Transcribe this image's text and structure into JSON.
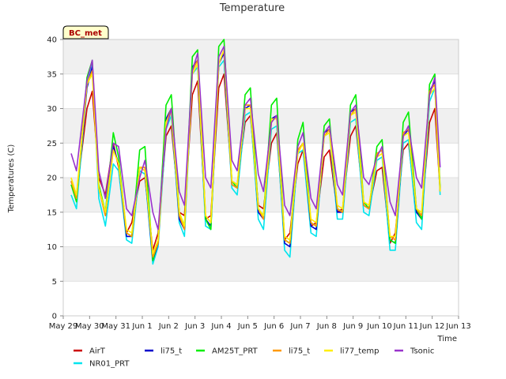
{
  "chart_data": {
    "type": "line",
    "title": "Temperature",
    "xlabel": "Time",
    "ylabel": "Temperatures (C)",
    "badge": "BC_met",
    "ylim": [
      0,
      40
    ],
    "yticks": [
      0,
      5,
      10,
      15,
      20,
      25,
      30,
      35,
      40
    ],
    "xlim": [
      0,
      15
    ],
    "xticks": [
      {
        "value": 0,
        "label": "May 29"
      },
      {
        "value": 1,
        "label": "May 30"
      },
      {
        "value": 2,
        "label": "May 31"
      },
      {
        "value": 3,
        "label": "Jun 1"
      },
      {
        "value": 4,
        "label": "Jun 2"
      },
      {
        "value": 5,
        "label": "Jun 3"
      },
      {
        "value": 6,
        "label": "Jun 4"
      },
      {
        "value": 7,
        "label": "Jun 5"
      },
      {
        "value": 8,
        "label": "Jun 6"
      },
      {
        "value": 9,
        "label": "Jun 7"
      },
      {
        "value": 10,
        "label": "Jun 8"
      },
      {
        "value": 11,
        "label": "Jun 9"
      },
      {
        "value": 12,
        "label": "Jun 10"
      },
      {
        "value": 13,
        "label": "Jun 11"
      },
      {
        "value": 14,
        "label": "Jun 12"
      },
      {
        "value": 15,
        "label": "Jun 13"
      }
    ],
    "grid": "horizontal bands",
    "legend_position": "bottom",
    "x": [
      0.3,
      0.5,
      0.9,
      1.1,
      1.35,
      1.6,
      1.9,
      2.1,
      2.4,
      2.6,
      2.9,
      3.1,
      3.4,
      3.6,
      3.9,
      4.1,
      4.4,
      4.6,
      4.9,
      5.1,
      5.4,
      5.6,
      5.9,
      6.1,
      6.4,
      6.6,
      6.9,
      7.1,
      7.4,
      7.6,
      7.9,
      8.1,
      8.4,
      8.6,
      8.9,
      9.1,
      9.4,
      9.6,
      9.9,
      10.1,
      10.4,
      10.6,
      10.9,
      11.1,
      11.4,
      11.6,
      11.9,
      12.1,
      12.4,
      12.6,
      12.9,
      13.1,
      13.4,
      13.6,
      13.9,
      14.1,
      14.3
    ],
    "series": [
      {
        "name": "AirT",
        "color": "#cc0000",
        "values": [
          19.5,
          17.5,
          30.0,
          32.5,
          20.0,
          17.5,
          25.0,
          21.5,
          12.0,
          13.5,
          19.5,
          20.0,
          9.5,
          12.0,
          26.0,
          27.5,
          15.0,
          14.5,
          32.0,
          34.0,
          14.0,
          14.5,
          33.0,
          35.0,
          19.5,
          19.0,
          28.0,
          29.0,
          16.0,
          15.5,
          25.0,
          26.5,
          11.0,
          12.0,
          22.0,
          24.0,
          13.0,
          13.5,
          23.0,
          24.0,
          15.0,
          15.5,
          26.0,
          27.5,
          16.0,
          15.5,
          21.0,
          21.5,
          10.5,
          12.0,
          24.0,
          25.0,
          15.0,
          14.5,
          28.0,
          30.0,
          18.0
        ]
      },
      {
        "name": "NR01_PRT",
        "color": "#00e5ee",
        "values": [
          17.5,
          15.5,
          33.0,
          36.5,
          17.0,
          13.0,
          22.0,
          21.0,
          11.0,
          10.5,
          21.0,
          20.5,
          7.5,
          10.0,
          27.0,
          29.0,
          13.5,
          11.5,
          35.0,
          36.0,
          13.0,
          12.5,
          36.0,
          37.0,
          18.5,
          17.5,
          29.0,
          29.5,
          14.0,
          12.5,
          27.0,
          27.5,
          9.5,
          8.5,
          23.5,
          24.0,
          12.0,
          11.5,
          26.0,
          26.5,
          14.0,
          14.0,
          28.0,
          28.5,
          15.0,
          14.5,
          22.5,
          23.0,
          9.5,
          9.5,
          25.0,
          25.5,
          13.5,
          12.5,
          31.0,
          33.0,
          17.5
        ]
      },
      {
        "name": "li75_t",
        "color": "#0000cc",
        "values": [
          19.5,
          17.0,
          33.0,
          36.0,
          18.5,
          14.5,
          24.5,
          22.0,
          11.5,
          11.5,
          21.5,
          21.0,
          8.0,
          10.5,
          28.5,
          30.0,
          14.0,
          12.5,
          36.0,
          37.0,
          14.0,
          13.0,
          36.5,
          38.0,
          19.0,
          18.5,
          30.0,
          30.5,
          15.0,
          14.0,
          28.5,
          29.0,
          10.5,
          10.0,
          24.0,
          25.0,
          13.0,
          12.5,
          26.5,
          27.0,
          15.0,
          15.0,
          29.5,
          30.0,
          16.0,
          15.5,
          23.5,
          24.0,
          11.0,
          10.5,
          26.0,
          27.0,
          15.0,
          14.0,
          32.5,
          34.0,
          18.0
        ]
      },
      {
        "name": "AM25T_PRT",
        "color": "#00ee00",
        "values": [
          19.0,
          16.5,
          34.5,
          37.0,
          19.0,
          15.0,
          26.5,
          23.0,
          12.0,
          11.5,
          24.0,
          24.5,
          8.0,
          11.0,
          30.5,
          32.0,
          15.0,
          13.0,
          37.5,
          38.5,
          14.0,
          12.5,
          39.0,
          40.0,
          19.5,
          18.5,
          32.0,
          33.0,
          15.5,
          14.5,
          30.5,
          31.5,
          11.0,
          10.5,
          25.5,
          28.0,
          13.5,
          13.0,
          27.5,
          28.5,
          15.5,
          15.0,
          30.5,
          32.0,
          16.5,
          15.5,
          24.5,
          25.5,
          11.0,
          10.5,
          28.0,
          29.5,
          15.5,
          14.0,
          33.5,
          35.0,
          18.5
        ]
      },
      {
        "name": "li75_t",
        "color": "#ff9900",
        "values": [
          19.5,
          17.0,
          33.5,
          35.5,
          18.5,
          14.5,
          24.0,
          22.0,
          12.0,
          11.5,
          21.5,
          21.5,
          8.5,
          10.5,
          28.0,
          30.0,
          14.5,
          12.5,
          35.5,
          37.0,
          14.5,
          13.5,
          36.5,
          38.5,
          19.0,
          18.5,
          30.5,
          30.5,
          15.5,
          14.0,
          28.0,
          29.0,
          11.0,
          10.5,
          24.0,
          25.0,
          13.5,
          13.0,
          26.0,
          27.0,
          15.5,
          15.0,
          29.0,
          30.0,
          16.0,
          15.5,
          23.5,
          24.0,
          11.5,
          11.0,
          26.5,
          27.0,
          15.5,
          14.5,
          32.5,
          33.5,
          18.0
        ]
      },
      {
        "name": "li77_temp",
        "color": "#ffee00",
        "values": [
          20.0,
          17.5,
          33.5,
          35.0,
          18.5,
          15.0,
          24.0,
          22.0,
          12.5,
          12.0,
          21.5,
          21.0,
          9.0,
          11.0,
          28.0,
          29.5,
          15.0,
          13.0,
          35.0,
          36.5,
          14.5,
          13.5,
          36.5,
          38.5,
          19.5,
          19.0,
          30.0,
          30.0,
          15.5,
          14.5,
          28.5,
          28.5,
          11.5,
          11.0,
          23.5,
          25.0,
          14.0,
          13.5,
          26.0,
          26.5,
          16.0,
          15.5,
          29.0,
          29.5,
          16.5,
          16.0,
          23.0,
          23.5,
          11.5,
          11.5,
          26.0,
          26.5,
          15.5,
          15.0,
          32.0,
          33.0,
          18.0
        ]
      },
      {
        "name": "Tsonic",
        "color": "#9933cc",
        "values": [
          23.5,
          21.0,
          34.0,
          37.0,
          21.0,
          17.0,
          25.0,
          24.5,
          15.5,
          14.5,
          20.0,
          22.5,
          15.0,
          12.5,
          27.0,
          30.0,
          18.0,
          16.0,
          35.5,
          38.0,
          20.0,
          18.5,
          37.5,
          39.0,
          22.5,
          21.0,
          30.5,
          31.5,
          20.5,
          18.0,
          28.0,
          29.0,
          16.0,
          14.5,
          24.5,
          26.5,
          17.0,
          15.5,
          26.5,
          27.5,
          19.0,
          17.5,
          29.5,
          30.5,
          20.0,
          19.0,
          23.0,
          24.5,
          16.5,
          14.5,
          26.0,
          27.5,
          20.0,
          18.5,
          32.0,
          34.5,
          21.5
        ]
      }
    ]
  }
}
